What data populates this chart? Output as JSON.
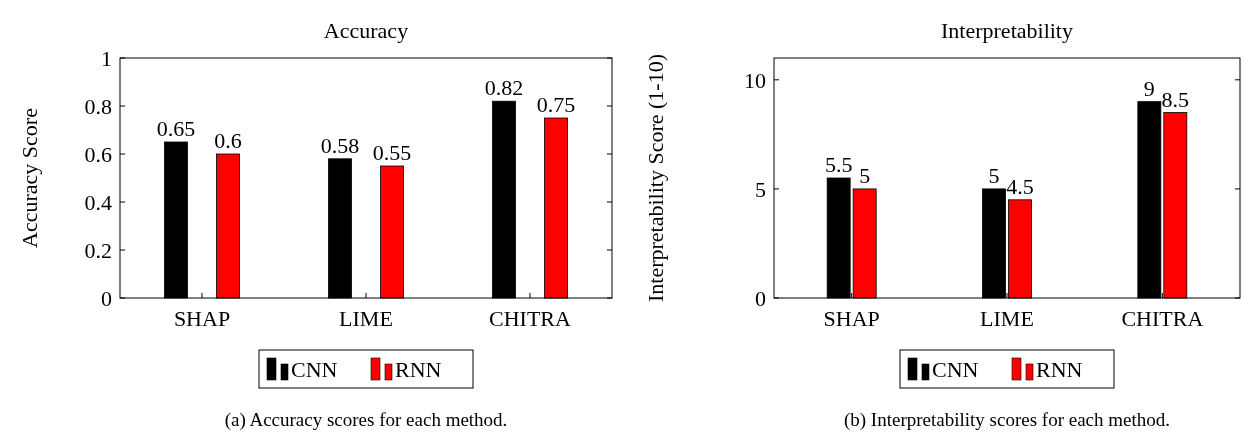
{
  "chart_data": [
    {
      "type": "bar",
      "title": "Accuracy",
      "ylabel": "Accuracy Score",
      "categories": [
        "SHAP",
        "LIME",
        "CHITRA"
      ],
      "series": [
        {
          "name": "CNN",
          "color": "#000000",
          "values": [
            0.65,
            0.58,
            0.82
          ]
        },
        {
          "name": "RNN",
          "color": "#ff0000",
          "values": [
            0.6,
            0.55,
            0.75
          ]
        }
      ],
      "ylim": [
        0,
        1
      ],
      "yticks": [
        0,
        0.2,
        0.4,
        0.6,
        0.8,
        1
      ],
      "data_labels": true,
      "legend": "bottom",
      "grid": false,
      "annotations": [
        "(a) Accuracy scores for each method."
      ]
    },
    {
      "type": "bar",
      "title": "Interpretability",
      "ylabel": "Interpretability Score (1-10)",
      "categories": [
        "SHAP",
        "LIME",
        "CHITRA"
      ],
      "series": [
        {
          "name": "CNN",
          "color": "#000000",
          "values": [
            5.5,
            5,
            9
          ]
        },
        {
          "name": "RNN",
          "color": "#ff0000",
          "values": [
            5,
            4.5,
            8.5
          ]
        }
      ],
      "ylim": [
        0,
        11
      ],
      "yticks": [
        0,
        5,
        10
      ],
      "data_labels": true,
      "legend": "bottom",
      "grid": false,
      "annotations": [
        "(b) Interpretability scores for each method."
      ]
    }
  ]
}
